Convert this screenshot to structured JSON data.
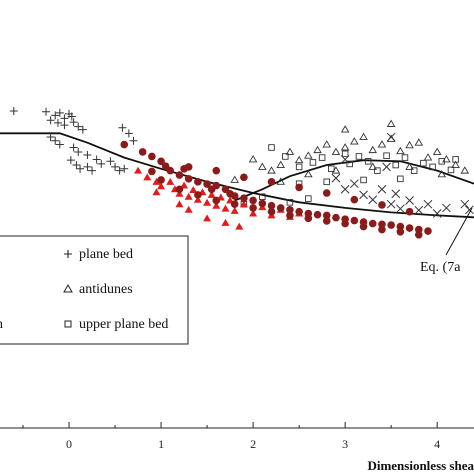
{
  "chart_data": {
    "type": "scatter",
    "xlabel": "Dimensionless shea",
    "x_ticks": [
      "0",
      "1",
      "2",
      "3",
      "4"
    ],
    "xlim": [
      -0.75,
      4.4
    ],
    "ylim": [
      0,
      1
    ],
    "legend": {
      "placement": "center-left",
      "entries": [
        {
          "symbol": "+",
          "label": "plane bed"
        },
        {
          "symbol": "△",
          "label": "antidunes"
        },
        {
          "symbol": "□",
          "label": "upper plane bed"
        },
        {
          "symbol": "",
          "label": "n"
        }
      ]
    },
    "annotations": [
      {
        "text": "Eq. (7a",
        "x": 4.05,
        "y": 0.3
      }
    ],
    "fitted_curves": [
      {
        "points": [
          [
            -0.75,
            0.79
          ],
          [
            -0.1,
            0.79
          ],
          [
            0.2,
            0.765
          ],
          [
            0.6,
            0.725
          ],
          [
            1.0,
            0.695
          ],
          [
            1.5,
            0.66
          ],
          [
            2.0,
            0.63
          ],
          [
            2.5,
            0.605
          ],
          [
            3.0,
            0.59
          ],
          [
            3.5,
            0.578
          ],
          [
            4.0,
            0.57
          ],
          [
            4.4,
            0.565
          ]
        ]
      },
      {
        "points": [
          [
            1.8,
            0.61
          ],
          [
            2.1,
            0.64
          ],
          [
            2.4,
            0.675
          ],
          [
            2.8,
            0.705
          ],
          [
            3.2,
            0.718
          ],
          [
            3.6,
            0.715
          ],
          [
            4.0,
            0.69
          ],
          [
            4.4,
            0.655
          ]
        ]
      }
    ],
    "series": [
      {
        "marker": "plus",
        "color": "#333333",
        "points": [
          [
            -0.6,
            0.85
          ],
          [
            -0.25,
            0.848
          ],
          [
            -0.15,
            0.838
          ],
          [
            -0.1,
            0.845
          ],
          [
            -0.05,
            0.83
          ],
          [
            0.0,
            0.842
          ],
          [
            0.03,
            0.835
          ],
          [
            -0.2,
            0.825
          ],
          [
            -0.12,
            0.818
          ],
          [
            -0.05,
            0.812
          ],
          [
            0.05,
            0.82
          ],
          [
            0.1,
            0.808
          ],
          [
            0.15,
            0.8
          ],
          [
            -0.2,
            0.78
          ],
          [
            -0.15,
            0.77
          ],
          [
            -0.1,
            0.76
          ],
          [
            0.05,
            0.752
          ],
          [
            0.1,
            0.74
          ],
          [
            0.2,
            0.732
          ],
          [
            0.3,
            0.72
          ],
          [
            0.35,
            0.708
          ],
          [
            0.45,
            0.715
          ],
          [
            0.5,
            0.7
          ],
          [
            0.55,
            0.69
          ],
          [
            0.6,
            0.695
          ],
          [
            0.02,
            0.718
          ],
          [
            0.08,
            0.705
          ],
          [
            0.12,
            0.695
          ],
          [
            0.2,
            0.7
          ],
          [
            0.25,
            0.69
          ],
          [
            0.58,
            0.805
          ],
          [
            0.65,
            0.79
          ],
          [
            0.7,
            0.77
          ]
        ]
      },
      {
        "marker": "circle",
        "color": "#8b1a1a",
        "points": [
          [
            0.6,
            0.76
          ],
          [
            0.8,
            0.74
          ],
          [
            0.9,
            0.728
          ],
          [
            1.0,
            0.715
          ],
          [
            1.05,
            0.702
          ],
          [
            1.1,
            0.69
          ],
          [
            1.2,
            0.678
          ],
          [
            1.25,
            0.695
          ],
          [
            1.3,
            0.668
          ],
          [
            1.4,
            0.66
          ],
          [
            1.5,
            0.654
          ],
          [
            1.55,
            0.64
          ],
          [
            1.6,
            0.65
          ],
          [
            1.7,
            0.64
          ],
          [
            1.75,
            0.628
          ],
          [
            1.8,
            0.622
          ],
          [
            1.9,
            0.616
          ],
          [
            2.0,
            0.61
          ],
          [
            2.1,
            0.602
          ],
          [
            2.2,
            0.596
          ],
          [
            2.3,
            0.59
          ],
          [
            2.4,
            0.585
          ],
          [
            2.5,
            0.58
          ],
          [
            2.6,
            0.575
          ],
          [
            2.7,
            0.572
          ],
          [
            2.8,
            0.57
          ],
          [
            2.9,
            0.564
          ],
          [
            3.0,
            0.56
          ],
          [
            3.1,
            0.556
          ],
          [
            3.2,
            0.552
          ],
          [
            3.3,
            0.548
          ],
          [
            3.4,
            0.546
          ],
          [
            3.5,
            0.544
          ],
          [
            3.6,
            0.54
          ],
          [
            3.7,
            0.536
          ],
          [
            3.8,
            0.532
          ],
          [
            3.9,
            0.528
          ],
          [
            1.0,
            0.665
          ],
          [
            1.2,
            0.64
          ],
          [
            1.4,
            0.625
          ],
          [
            1.6,
            0.61
          ],
          [
            1.8,
            0.6
          ],
          [
            2.0,
            0.59
          ],
          [
            2.2,
            0.58
          ],
          [
            2.4,
            0.57
          ],
          [
            2.6,
            0.562
          ],
          [
            2.8,
            0.555
          ],
          [
            3.0,
            0.548
          ],
          [
            3.2,
            0.54
          ],
          [
            3.4,
            0.532
          ],
          [
            3.6,
            0.526
          ],
          [
            3.8,
            0.518
          ],
          [
            0.9,
            0.688
          ],
          [
            1.3,
            0.7
          ],
          [
            1.6,
            0.69
          ],
          [
            1.9,
            0.672
          ],
          [
            2.2,
            0.66
          ],
          [
            2.5,
            0.645
          ],
          [
            2.8,
            0.63
          ],
          [
            3.1,
            0.612
          ],
          [
            3.4,
            0.598
          ],
          [
            3.7,
            0.58
          ]
        ]
      },
      {
        "marker": "triangle-filled",
        "color": "#e31b1b",
        "points": [
          [
            0.75,
            0.69
          ],
          [
            0.85,
            0.672
          ],
          [
            0.95,
            0.66
          ],
          [
            1.0,
            0.648
          ],
          [
            1.1,
            0.66
          ],
          [
            1.15,
            0.64
          ],
          [
            1.2,
            0.628
          ],
          [
            1.25,
            0.65
          ],
          [
            1.3,
            0.62
          ],
          [
            1.35,
            0.638
          ],
          [
            1.4,
            0.612
          ],
          [
            1.45,
            0.632
          ],
          [
            1.5,
            0.604
          ],
          [
            1.55,
            0.625
          ],
          [
            1.6,
            0.596
          ],
          [
            1.65,
            0.618
          ],
          [
            1.7,
            0.588
          ],
          [
            1.75,
            0.61
          ],
          [
            1.8,
            0.582
          ],
          [
            1.9,
            0.6
          ],
          [
            2.0,
            0.575
          ],
          [
            2.1,
            0.592
          ],
          [
            2.2,
            0.57
          ],
          [
            2.3,
            0.585
          ],
          [
            1.5,
            0.562
          ],
          [
            1.7,
            0.55
          ],
          [
            1.85,
            0.54
          ],
          [
            1.2,
            0.6
          ],
          [
            1.3,
            0.585
          ],
          [
            0.95,
            0.632
          ],
          [
            2.4,
            0.566
          ],
          [
            2.5,
            0.575
          ]
        ]
      },
      {
        "marker": "triangle-open",
        "color": "#333333",
        "points": [
          [
            2.0,
            0.72
          ],
          [
            2.1,
            0.7
          ],
          [
            2.2,
            0.69
          ],
          [
            2.3,
            0.705
          ],
          [
            2.4,
            0.74
          ],
          [
            2.5,
            0.718
          ],
          [
            2.6,
            0.73
          ],
          [
            2.7,
            0.745
          ],
          [
            2.8,
            0.76
          ],
          [
            2.9,
            0.74
          ],
          [
            3.0,
            0.752
          ],
          [
            3.1,
            0.768
          ],
          [
            3.2,
            0.78
          ],
          [
            3.3,
            0.745
          ],
          [
            3.4,
            0.76
          ],
          [
            3.5,
            0.775
          ],
          [
            3.6,
            0.742
          ],
          [
            3.7,
            0.758
          ],
          [
            3.8,
            0.765
          ],
          [
            3.9,
            0.725
          ],
          [
            4.0,
            0.74
          ],
          [
            4.1,
            0.72
          ],
          [
            4.2,
            0.705
          ],
          [
            4.3,
            0.69
          ],
          [
            2.6,
            0.68
          ],
          [
            2.9,
            0.69
          ],
          [
            3.3,
            0.7
          ],
          [
            3.7,
            0.7
          ],
          [
            4.05,
            0.68
          ],
          [
            3.0,
            0.8
          ],
          [
            3.5,
            0.815
          ],
          [
            2.3,
            0.66
          ],
          [
            1.8,
            0.665
          ]
        ]
      },
      {
        "marker": "square-open",
        "color": "#333333",
        "points": [
          [
            2.2,
            0.752
          ],
          [
            2.35,
            0.728
          ],
          [
            2.5,
            0.7
          ],
          [
            2.65,
            0.712
          ],
          [
            2.75,
            0.725
          ],
          [
            2.85,
            0.695
          ],
          [
            3.0,
            0.735
          ],
          [
            3.05,
            0.708
          ],
          [
            3.15,
            0.728
          ],
          [
            3.25,
            0.715
          ],
          [
            3.35,
            0.69
          ],
          [
            3.45,
            0.73
          ],
          [
            3.55,
            0.705
          ],
          [
            3.65,
            0.725
          ],
          [
            3.75,
            0.69
          ],
          [
            3.85,
            0.71
          ],
          [
            3.95,
            0.7
          ],
          [
            4.05,
            0.715
          ],
          [
            4.15,
            0.692
          ],
          [
            2.5,
            0.655
          ],
          [
            2.8,
            0.66
          ],
          [
            3.2,
            0.665
          ],
          [
            3.6,
            0.668
          ],
          [
            2.1,
            0.62
          ],
          [
            2.6,
            0.615
          ],
          [
            1.9,
            0.6
          ],
          [
            2.4,
            0.605
          ],
          [
            4.2,
            0.72
          ]
        ]
      },
      {
        "marker": "cross",
        "color": "#333333",
        "points": [
          [
            2.9,
            0.67
          ],
          [
            3.0,
            0.64
          ],
          [
            3.1,
            0.655
          ],
          [
            3.2,
            0.625
          ],
          [
            3.3,
            0.612
          ],
          [
            3.4,
            0.64
          ],
          [
            3.5,
            0.6
          ],
          [
            3.55,
            0.628
          ],
          [
            3.6,
            0.588
          ],
          [
            3.7,
            0.61
          ],
          [
            3.8,
            0.584
          ],
          [
            3.9,
            0.6
          ],
          [
            4.0,
            0.575
          ],
          [
            4.1,
            0.59
          ],
          [
            4.3,
            0.6
          ],
          [
            3.5,
            0.78
          ],
          [
            3.0,
            0.72
          ],
          [
            3.45,
            0.7
          ],
          [
            4.35,
            0.585
          ]
        ]
      }
    ]
  }
}
